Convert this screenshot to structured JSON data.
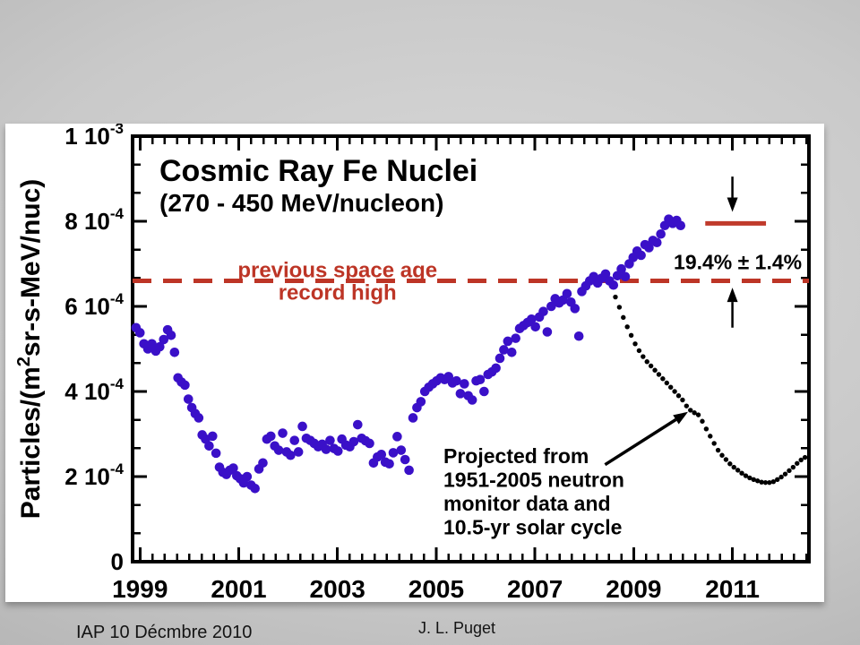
{
  "slide": {
    "footer_left": "IAP 10 Décmbre 2010",
    "footer_center": "J. L. Puget"
  },
  "chart_data": {
    "type": "scatter",
    "title": "Cosmic Ray Fe Nuclei",
    "subtitle": "(270 - 450 MeV/nucleon)",
    "x_axis": {
      "range": [
        1998.85,
        2012.55
      ],
      "ticks": [
        1999,
        2001,
        2003,
        2005,
        2007,
        2009,
        2011
      ],
      "minor_step": 0.25
    },
    "y_axis": {
      "label_parts": {
        "prefix": "Particles/(m",
        "sup": "2",
        "suffix": "sr-s-MeV/nuc)"
      },
      "units_note": "point values stored in units of 1e-4 particles/(m2 sr s MeV/nuc)",
      "range_1e4": [
        0,
        10
      ],
      "ticks": [
        {
          "v": 10,
          "m": "1 10",
          "e": "-3"
        },
        {
          "v": 8,
          "m": "8 10",
          "e": "-4"
        },
        {
          "v": 6,
          "m": "6 10",
          "e": "-4"
        },
        {
          "v": 4,
          "m": "4 10",
          "e": "-4"
        },
        {
          "v": 2,
          "m": "2 10",
          "e": "-4"
        },
        {
          "v": 0,
          "m": "0",
          "e": ""
        }
      ]
    },
    "record_line": {
      "value_1e4": 6.6,
      "label": [
        "previous space age",
        "record high"
      ],
      "label_center_year": 2003.0,
      "color": "#bd3526"
    },
    "comparison_bar": {
      "value_1e4": 7.95,
      "year_start": 2010.45,
      "year_end": 2011.68,
      "color": "#c03a2b",
      "label": "19.4% ± 1.4%"
    },
    "arrows": {
      "down": {
        "year": 2011.0,
        "from_1e4": 9.05,
        "to_1e4": 8.22
      },
      "up": {
        "year": 2011.0,
        "from_1e4": 5.5,
        "to_1e4": 6.44
      },
      "pointer": {
        "from": [
          2008.42,
          2.28
        ],
        "to": [
          2010.1,
          3.52
        ]
      }
    },
    "series": {
      "color": "#3a10c8",
      "points": [
        [
          1998.92,
          5.5
        ],
        [
          1999.0,
          5.38
        ],
        [
          1999.08,
          5.12
        ],
        [
          1999.16,
          5.0
        ],
        [
          1999.24,
          5.12
        ],
        [
          1999.32,
          4.95
        ],
        [
          1999.4,
          5.05
        ],
        [
          1999.48,
          5.22
        ],
        [
          1999.56,
          5.45
        ],
        [
          1999.63,
          5.32
        ],
        [
          1999.7,
          4.92
        ],
        [
          1999.77,
          4.32
        ],
        [
          1999.84,
          4.22
        ],
        [
          1999.91,
          4.15
        ],
        [
          1999.98,
          3.82
        ],
        [
          2000.05,
          3.62
        ],
        [
          2000.12,
          3.48
        ],
        [
          2000.19,
          3.38
        ],
        [
          2000.26,
          2.98
        ],
        [
          2000.33,
          2.88
        ],
        [
          2000.4,
          2.72
        ],
        [
          2000.47,
          2.95
        ],
        [
          2000.54,
          2.55
        ],
        [
          2000.61,
          2.22
        ],
        [
          2000.68,
          2.1
        ],
        [
          2000.75,
          2.05
        ],
        [
          2000.82,
          2.15
        ],
        [
          2000.89,
          2.2
        ],
        [
          2000.96,
          2.02
        ],
        [
          2001.03,
          1.95
        ],
        [
          2001.1,
          1.85
        ],
        [
          2001.17,
          2.0
        ],
        [
          2001.25,
          1.8
        ],
        [
          2001.33,
          1.72
        ],
        [
          2001.41,
          2.18
        ],
        [
          2001.49,
          2.32
        ],
        [
          2001.57,
          2.88
        ],
        [
          2001.65,
          2.95
        ],
        [
          2001.73,
          2.72
        ],
        [
          2001.81,
          2.62
        ],
        [
          2001.89,
          3.02
        ],
        [
          2001.97,
          2.58
        ],
        [
          2002.05,
          2.5
        ],
        [
          2002.13,
          2.85
        ],
        [
          2002.21,
          2.58
        ],
        [
          2002.29,
          3.18
        ],
        [
          2002.37,
          2.9
        ],
        [
          2002.45,
          2.85
        ],
        [
          2002.53,
          2.78
        ],
        [
          2002.61,
          2.7
        ],
        [
          2002.69,
          2.76
        ],
        [
          2002.77,
          2.64
        ],
        [
          2002.85,
          2.85
        ],
        [
          2002.93,
          2.66
        ],
        [
          2003.01,
          2.6
        ],
        [
          2003.09,
          2.88
        ],
        [
          2003.17,
          2.74
        ],
        [
          2003.25,
          2.7
        ],
        [
          2003.33,
          2.82
        ],
        [
          2003.41,
          3.22
        ],
        [
          2003.49,
          2.9
        ],
        [
          2003.57,
          2.84
        ],
        [
          2003.65,
          2.78
        ],
        [
          2003.73,
          2.32
        ],
        [
          2003.81,
          2.46
        ],
        [
          2003.89,
          2.52
        ],
        [
          2003.97,
          2.34
        ],
        [
          2004.05,
          2.3
        ],
        [
          2004.13,
          2.56
        ],
        [
          2004.21,
          2.94
        ],
        [
          2004.29,
          2.62
        ],
        [
          2004.37,
          2.4
        ],
        [
          2004.45,
          2.15
        ],
        [
          2004.53,
          3.38
        ],
        [
          2004.61,
          3.62
        ],
        [
          2004.69,
          3.76
        ],
        [
          2004.77,
          4.0
        ],
        [
          2004.85,
          4.1
        ],
        [
          2004.93,
          4.18
        ],
        [
          2005.01,
          4.25
        ],
        [
          2005.09,
          4.32
        ],
        [
          2005.17,
          4.28
        ],
        [
          2005.25,
          4.35
        ],
        [
          2005.33,
          4.2
        ],
        [
          2005.41,
          4.25
        ],
        [
          2005.49,
          3.95
        ],
        [
          2005.57,
          4.18
        ],
        [
          2005.65,
          3.9
        ],
        [
          2005.73,
          3.8
        ],
        [
          2005.81,
          4.25
        ],
        [
          2005.89,
          4.28
        ],
        [
          2005.97,
          4.0
        ],
        [
          2006.05,
          4.4
        ],
        [
          2006.13,
          4.46
        ],
        [
          2006.21,
          4.55
        ],
        [
          2006.29,
          4.78
        ],
        [
          2006.37,
          4.98
        ],
        [
          2006.45,
          5.18
        ],
        [
          2006.53,
          4.92
        ],
        [
          2006.61,
          5.25
        ],
        [
          2006.69,
          5.48
        ],
        [
          2006.77,
          5.55
        ],
        [
          2006.85,
          5.62
        ],
        [
          2006.93,
          5.7
        ],
        [
          2007.01,
          5.52
        ],
        [
          2007.09,
          5.75
        ],
        [
          2007.17,
          5.88
        ],
        [
          2007.25,
          5.4
        ],
        [
          2007.33,
          6.0
        ],
        [
          2007.41,
          6.18
        ],
        [
          2007.49,
          6.08
        ],
        [
          2007.57,
          6.15
        ],
        [
          2007.65,
          6.3
        ],
        [
          2007.73,
          6.1
        ],
        [
          2007.81,
          5.95
        ],
        [
          2007.89,
          5.3
        ],
        [
          2007.95,
          6.35
        ],
        [
          2008.03,
          6.48
        ],
        [
          2008.11,
          6.6
        ],
        [
          2008.19,
          6.7
        ],
        [
          2008.27,
          6.55
        ],
        [
          2008.35,
          6.66
        ],
        [
          2008.43,
          6.76
        ],
        [
          2008.51,
          6.6
        ],
        [
          2008.59,
          6.5
        ],
        [
          2008.67,
          6.72
        ],
        [
          2008.75,
          6.88
        ],
        [
          2008.83,
          6.7
        ],
        [
          2008.91,
          7.0
        ],
        [
          2008.99,
          7.15
        ],
        [
          2009.07,
          7.3
        ],
        [
          2009.15,
          7.2
        ],
        [
          2009.23,
          7.45
        ],
        [
          2009.31,
          7.38
        ],
        [
          2009.39,
          7.55
        ],
        [
          2009.47,
          7.5
        ],
        [
          2009.55,
          7.7
        ],
        [
          2009.63,
          7.9
        ],
        [
          2009.71,
          8.05
        ],
        [
          2009.79,
          7.95
        ],
        [
          2009.87,
          8.02
        ],
        [
          2009.95,
          7.9
        ]
      ]
    },
    "projection": {
      "color": "#000000",
      "label": [
        "Projected from",
        "1951-2005 neutron",
        "monitor data and",
        "10.5-yr solar cycle"
      ],
      "points": [
        [
          2008.55,
          6.48
        ],
        [
          2008.63,
          6.22
        ],
        [
          2008.71,
          5.98
        ],
        [
          2008.79,
          5.74
        ],
        [
          2008.87,
          5.52
        ],
        [
          2008.95,
          5.32
        ],
        [
          2009.03,
          5.12
        ],
        [
          2009.11,
          4.96
        ],
        [
          2009.19,
          4.82
        ],
        [
          2009.27,
          4.7
        ],
        [
          2009.35,
          4.6
        ],
        [
          2009.43,
          4.5
        ],
        [
          2009.51,
          4.4
        ],
        [
          2009.59,
          4.3
        ],
        [
          2009.67,
          4.2
        ],
        [
          2009.75,
          4.1
        ],
        [
          2009.83,
          4.0
        ],
        [
          2009.91,
          3.9
        ],
        [
          2009.99,
          3.8
        ],
        [
          2010.07,
          3.66
        ],
        [
          2010.15,
          3.56
        ],
        [
          2010.23,
          3.5
        ],
        [
          2010.31,
          3.45
        ],
        [
          2010.39,
          3.3
        ],
        [
          2010.47,
          3.12
        ],
        [
          2010.55,
          2.95
        ],
        [
          2010.63,
          2.78
        ],
        [
          2010.71,
          2.62
        ],
        [
          2010.79,
          2.5
        ],
        [
          2010.87,
          2.4
        ],
        [
          2010.95,
          2.3
        ],
        [
          2011.03,
          2.22
        ],
        [
          2011.11,
          2.15
        ],
        [
          2011.19,
          2.08
        ],
        [
          2011.27,
          2.02
        ],
        [
          2011.35,
          1.97
        ],
        [
          2011.43,
          1.93
        ],
        [
          2011.51,
          1.9
        ],
        [
          2011.59,
          1.87
        ],
        [
          2011.67,
          1.86
        ],
        [
          2011.75,
          1.86
        ],
        [
          2011.83,
          1.88
        ],
        [
          2011.91,
          1.93
        ],
        [
          2011.99,
          1.99
        ],
        [
          2012.07,
          2.06
        ],
        [
          2012.15,
          2.14
        ],
        [
          2012.23,
          2.22
        ],
        [
          2012.31,
          2.31
        ],
        [
          2012.39,
          2.39
        ],
        [
          2012.47,
          2.45
        ]
      ]
    }
  }
}
